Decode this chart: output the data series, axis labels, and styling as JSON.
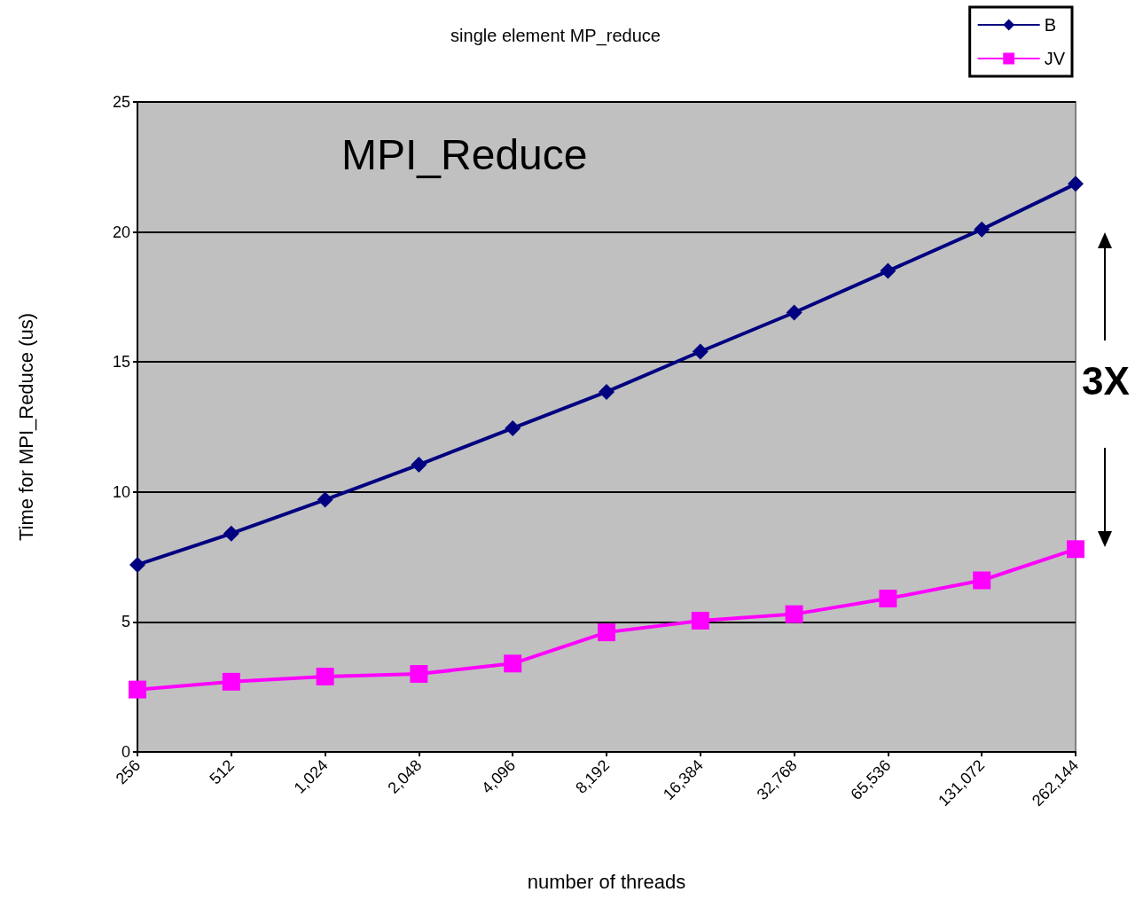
{
  "chart_data": {
    "type": "line",
    "title": "single element MP_reduce",
    "xlabel": "number of threads",
    "ylabel": "Time for MPI_Reduce (us)",
    "annotations": [
      "MPI_Reduce",
      "3X"
    ],
    "categories": [
      "256",
      "512",
      "1,024",
      "2,048",
      "4,096",
      "8,192",
      "16,384",
      "32,768",
      "65,536",
      "131,072",
      "262,144"
    ],
    "series": [
      {
        "name": "B",
        "color": "#000080",
        "marker": "diamond",
        "values": [
          7.2,
          8.4,
          9.7,
          11.05,
          12.45,
          13.85,
          15.4,
          16.9,
          18.5,
          20.1,
          21.85
        ]
      },
      {
        "name": "JV",
        "color": "#ff00ff",
        "marker": "square",
        "values": [
          2.4,
          2.7,
          2.9,
          3.0,
          3.4,
          4.6,
          5.05,
          5.3,
          5.9,
          6.6,
          7.8
        ]
      }
    ],
    "ylim": [
      0,
      25
    ],
    "yticks": [
      0,
      5,
      10,
      15,
      20,
      25
    ],
    "grid": "y",
    "legend": "top right"
  }
}
